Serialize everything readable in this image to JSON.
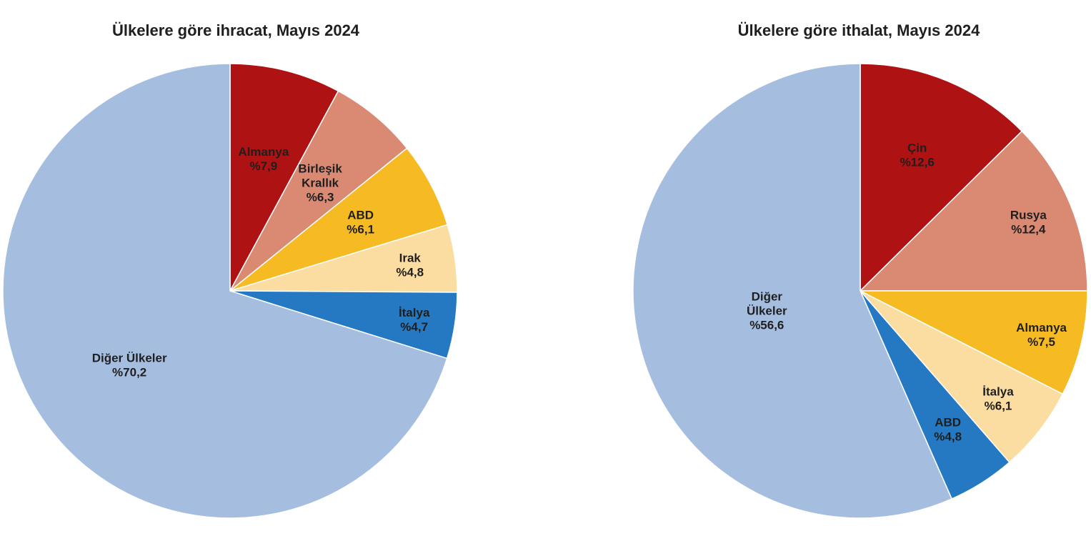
{
  "chart_data": [
    {
      "type": "pie",
      "title": "Ülkelere göre ihracat, Mayıs 2024",
      "colors": [
        "#AE1212",
        "#DA8A73",
        "#F6BA23",
        "#FCDDA1",
        "#2479C2",
        "#A5BEE0"
      ],
      "slices": [
        {
          "label": [
            "Almanya"
          ],
          "value_text": "%7,9",
          "value": 7.9
        },
        {
          "label": [
            "Birleşik",
            "Krallık"
          ],
          "value_text": "%6,3",
          "value": 6.3
        },
        {
          "label": [
            "ABD"
          ],
          "value_text": "%6,1",
          "value": 6.1
        },
        {
          "label": [
            "Irak"
          ],
          "value_text": "%4,8",
          "value": 4.8
        },
        {
          "label": [
            "İtalya"
          ],
          "value_text": "%4,7",
          "value": 4.7
        },
        {
          "label": [
            "Diğer Ülkeler"
          ],
          "value_text": "%70,2",
          "value": 70.2
        }
      ]
    },
    {
      "type": "pie",
      "title": "Ülkelere göre ithalat, Mayıs 2024",
      "colors": [
        "#AE1212",
        "#DA8A73",
        "#F6BA23",
        "#FCDDA1",
        "#2479C2",
        "#A5BEE0"
      ],
      "slices": [
        {
          "label": [
            "Çin"
          ],
          "value_text": "%12,6",
          "value": 12.6
        },
        {
          "label": [
            "Rusya"
          ],
          "value_text": "%12,4",
          "value": 12.4
        },
        {
          "label": [
            "Almanya"
          ],
          "value_text": "%7,5",
          "value": 7.5
        },
        {
          "label": [
            "İtalya"
          ],
          "value_text": "%6,1",
          "value": 6.1
        },
        {
          "label": [
            "ABD"
          ],
          "value_text": "%4,8",
          "value": 4.8
        },
        {
          "label": [
            "Diğer",
            "Ülkeler"
          ],
          "value_text": "%56,6",
          "value": 56.6
        }
      ]
    }
  ]
}
